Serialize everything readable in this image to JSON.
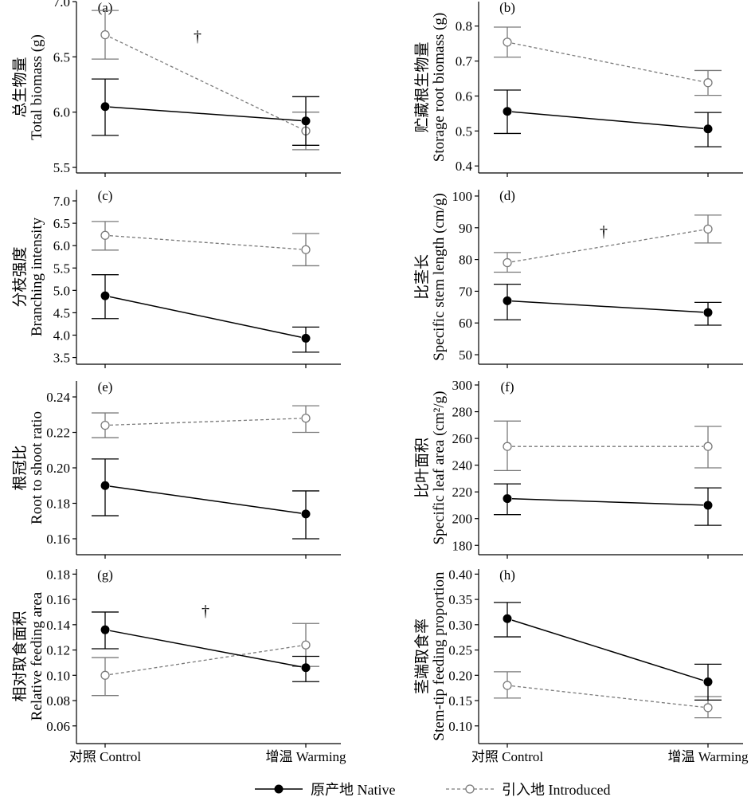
{
  "colors": {
    "native": "#000000",
    "introduced": "#7a7a7a",
    "axis": "#000000"
  },
  "legend": {
    "native": "原产地 Native",
    "introduced": "引入地 Introduced"
  },
  "chart_data": [
    {
      "type": "line",
      "tag": "(a)",
      "ylabel_cn": "总生物量",
      "ylabel_en": "Total biomass (g)",
      "categories": [
        "对照 Control",
        "增温 Warming"
      ],
      "show_x_tick_labels": false,
      "yticks": [
        "5.5",
        "6.0",
        "6.5",
        "7.0"
      ],
      "ylim": [
        5.45,
        7.0
      ],
      "mark": "†",
      "series": [
        {
          "name": "原产地 Native",
          "values": [
            6.05,
            5.92
          ],
          "err_low": [
            5.79,
            5.7
          ],
          "err_high": [
            6.3,
            6.14
          ]
        },
        {
          "name": "引入地 Introduced",
          "values": [
            6.7,
            5.83
          ],
          "err_low": [
            6.48,
            5.66
          ],
          "err_high": [
            6.92,
            6.0
          ]
        }
      ]
    },
    {
      "type": "line",
      "tag": "(b)",
      "ylabel_cn": "贮藏根生物量",
      "ylabel_en": "Storage root biomass (g)",
      "categories": [
        "对照 Control",
        "增温 Warming"
      ],
      "show_x_tick_labels": false,
      "yticks": [
        "0.4",
        "0.5",
        "0.6",
        "0.7",
        "0.8"
      ],
      "ylim": [
        0.38,
        0.87
      ],
      "mark": "",
      "series": [
        {
          "name": "原产地 Native",
          "values": [
            0.556,
            0.506
          ],
          "err_low": [
            0.493,
            0.455
          ],
          "err_high": [
            0.617,
            0.553
          ]
        },
        {
          "name": "引入地 Introduced",
          "values": [
            0.754,
            0.638
          ],
          "err_low": [
            0.711,
            0.602
          ],
          "err_high": [
            0.797,
            0.673
          ]
        }
      ]
    },
    {
      "type": "line",
      "tag": "(c)",
      "ylabel_cn": "分枝强度",
      "ylabel_en": "Branching intensity",
      "categories": [
        "对照 Control",
        "增温 Warming"
      ],
      "show_x_tick_labels": false,
      "yticks": [
        "3.5",
        "4.0",
        "4.5",
        "5.0",
        "5.5",
        "6.0",
        "6.5",
        "7.0"
      ],
      "ylim": [
        3.35,
        7.25
      ],
      "mark": "",
      "series": [
        {
          "name": "原产地 Native",
          "values": [
            4.88,
            3.93
          ],
          "err_low": [
            4.37,
            3.62
          ],
          "err_high": [
            5.35,
            4.18
          ]
        },
        {
          "name": "引入地 Introduced",
          "values": [
            6.23,
            5.91
          ],
          "err_low": [
            5.9,
            5.55
          ],
          "err_high": [
            6.54,
            6.27
          ]
        }
      ]
    },
    {
      "type": "line",
      "tag": "(d)",
      "ylabel_cn": "比茎长",
      "ylabel_en": "Specific stem length (cm/g)",
      "categories": [
        "对照 Control",
        "增温 Warming"
      ],
      "show_x_tick_labels": false,
      "yticks": [
        "50",
        "60",
        "70",
        "80",
        "90",
        "100"
      ],
      "ylim": [
        47,
        102
      ],
      "mark": "†",
      "series": [
        {
          "name": "原产地 Native",
          "values": [
            67.0,
            63.3
          ],
          "err_low": [
            61.0,
            59.3
          ],
          "err_high": [
            72.2,
            66.5
          ]
        },
        {
          "name": "引入地 Introduced",
          "values": [
            79.0,
            89.6
          ],
          "err_low": [
            76.0,
            85.2
          ],
          "err_high": [
            82.2,
            94.0
          ]
        }
      ]
    },
    {
      "type": "line",
      "tag": "(e)",
      "ylabel_cn": "根冠比",
      "ylabel_en": "Root to shoot ratio",
      "categories": [
        "对照 Control",
        "增温 Warming"
      ],
      "show_x_tick_labels": false,
      "yticks": [
        "0.16",
        "0.18",
        "0.20",
        "0.22",
        "0.24"
      ],
      "ylim": [
        0.151,
        0.249
      ],
      "mark": "",
      "series": [
        {
          "name": "原产地 Native",
          "values": [
            0.19,
            0.174
          ],
          "err_low": [
            0.173,
            0.16
          ],
          "err_high": [
            0.205,
            0.187
          ]
        },
        {
          "name": "引入地 Introduced",
          "values": [
            0.224,
            0.228
          ],
          "err_low": [
            0.217,
            0.22
          ],
          "err_high": [
            0.231,
            0.235
          ]
        }
      ]
    },
    {
      "type": "line",
      "tag": "(f)",
      "ylabel_cn": "比叶面积",
      "ylabel_en": "Specific leaf area (cm²/g)",
      "categories": [
        "对照 Control",
        "增温 Warming"
      ],
      "show_x_tick_labels": false,
      "yticks": [
        "180",
        "200",
        "220",
        "240",
        "260",
        "280",
        "300"
      ],
      "ylim": [
        173,
        303
      ],
      "mark": "",
      "series": [
        {
          "name": "原产地 Native",
          "values": [
            215,
            210
          ],
          "err_low": [
            203,
            195
          ],
          "err_high": [
            226,
            223
          ]
        },
        {
          "name": "引入地 Introduced",
          "values": [
            254,
            254
          ],
          "err_low": [
            236,
            238
          ],
          "err_high": [
            273,
            269
          ]
        }
      ]
    },
    {
      "type": "line",
      "tag": "(g)",
      "ylabel_cn": "相对取食面积",
      "ylabel_en": "Relative feeding area",
      "categories": [
        "对照 Control",
        "增温 Warming"
      ],
      "show_x_tick_labels": true,
      "yticks": [
        "0.06",
        "0.08",
        "0.10",
        "0.12",
        "0.14",
        "0.16",
        "0.18"
      ],
      "ylim": [
        0.046,
        0.184
      ],
      "mark": "†",
      "series": [
        {
          "name": "原产地 Native",
          "values": [
            0.136,
            0.106
          ],
          "err_low": [
            0.121,
            0.095
          ],
          "err_high": [
            0.15,
            0.115
          ]
        },
        {
          "name": "引入地 Introduced",
          "values": [
            0.1,
            0.124
          ],
          "err_low": [
            0.084,
            0.107
          ],
          "err_high": [
            0.114,
            0.141
          ]
        }
      ]
    },
    {
      "type": "line",
      "tag": "(h)",
      "ylabel_cn": "茎端取食率",
      "ylabel_en": "Stem-tip feeding proportion",
      "categories": [
        "对照 Control",
        "增温 Warming"
      ],
      "show_x_tick_labels": true,
      "yticks": [
        "0.10",
        "0.15",
        "0.20",
        "0.25",
        "0.30",
        "0.35",
        "0.40"
      ],
      "ylim": [
        0.065,
        0.41
      ],
      "mark": "",
      "series": [
        {
          "name": "原产地 Native",
          "values": [
            0.312,
            0.187
          ],
          "err_low": [
            0.276,
            0.151
          ],
          "err_high": [
            0.344,
            0.222
          ]
        },
        {
          "name": "引入地 Introduced",
          "values": [
            0.18,
            0.136
          ],
          "err_low": [
            0.155,
            0.116
          ],
          "err_high": [
            0.207,
            0.158
          ]
        }
      ]
    }
  ]
}
